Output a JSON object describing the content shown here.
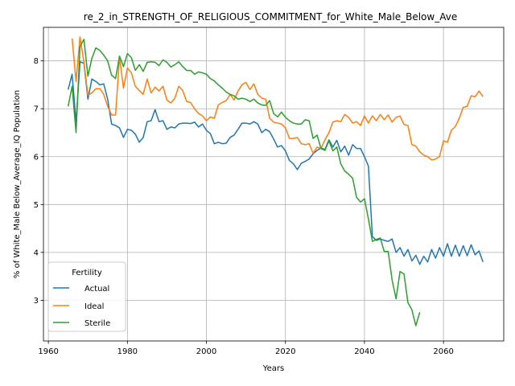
{
  "chart_data": {
    "type": "line",
    "title": "re_2_in_STRENGTH_OF_RELIGIOUS_COMMITMENT_for_White_Male_Below_Ave",
    "xlabel": "Years",
    "ylabel": "% of White_Male Below_Average_IQ Population",
    "xlim": [
      1958.75,
      2075.25
    ],
    "ylim": [
      2.15,
      8.7
    ],
    "xticks": [
      1960,
      1980,
      2000,
      2020,
      2040,
      2060
    ],
    "yticks": [
      3,
      4,
      5,
      6,
      7,
      8
    ],
    "grid": true,
    "legend": {
      "title": "Fertility",
      "position": "lower-left"
    },
    "series": [
      {
        "name": "Actual",
        "color": "#1f77b4",
        "x": [
          1965,
          1966,
          1967,
          1968,
          1969,
          1970,
          1971,
          1972,
          1973,
          1974,
          1975,
          1976,
          1977,
          1978,
          1979,
          1980,
          1981,
          1982,
          1983,
          1984,
          1985,
          1986,
          1987,
          1988,
          1989,
          1990,
          1991,
          1992,
          1993,
          1994,
          1995,
          1996,
          1997,
          1998,
          1999,
          2000,
          2001,
          2002,
          2003,
          2004,
          2005,
          2006,
          2007,
          2008,
          2009,
          2010,
          2011,
          2012,
          2013,
          2014,
          2015,
          2016,
          2017,
          2018,
          2019,
          2020,
          2021,
          2022,
          2023,
          2024,
          2025,
          2026,
          2027,
          2028,
          2029,
          2030,
          2031,
          2032,
          2033,
          2034,
          2035,
          2036,
          2037,
          2038,
          2039,
          2040,
          2041,
          2042,
          2043,
          2044,
          2045,
          2046,
          2047,
          2048,
          2049,
          2050,
          2051,
          2052,
          2053,
          2054,
          2055,
          2056,
          2057,
          2058,
          2059,
          2060,
          2061,
          2062,
          2063,
          2064,
          2065,
          2066,
          2067,
          2068,
          2069,
          2070
        ],
        "values": [
          7.4,
          7.72,
          6.72,
          7.98,
          7.95,
          7.2,
          7.62,
          7.57,
          7.5,
          7.52,
          7.2,
          6.68,
          6.65,
          6.6,
          6.4,
          6.57,
          6.55,
          6.47,
          6.3,
          6.4,
          6.73,
          6.75,
          6.98,
          6.73,
          6.75,
          6.57,
          6.62,
          6.6,
          6.68,
          6.7,
          6.7,
          6.69,
          6.72,
          6.62,
          6.68,
          6.55,
          6.48,
          6.27,
          6.3,
          6.27,
          6.28,
          6.4,
          6.45,
          6.57,
          6.7,
          6.7,
          6.68,
          6.73,
          6.68,
          6.5,
          6.57,
          6.52,
          6.37,
          6.2,
          6.23,
          6.12,
          5.92,
          5.85,
          5.73,
          5.86,
          5.9,
          5.95,
          6.06,
          6.13,
          6.18,
          6.15,
          6.35,
          6.2,
          6.34,
          6.1,
          6.22,
          6.03,
          6.25,
          6.17,
          6.17,
          6.0,
          5.8,
          4.33,
          4.25,
          4.28,
          4.25,
          4.23,
          4.28,
          4.0,
          4.1,
          3.92,
          4.06,
          3.82,
          3.94,
          3.75,
          3.92,
          3.8,
          4.06,
          3.88,
          4.1,
          3.92,
          4.18,
          3.92,
          4.15,
          3.92,
          4.14,
          3.93,
          4.16,
          3.95,
          4.03,
          3.8
        ]
      },
      {
        "name": "Ideal",
        "color": "#ff7f0e",
        "x": [
          1966,
          1967,
          1968,
          1969,
          1970,
          1971,
          1972,
          1973,
          1974,
          1975,
          1976,
          1977,
          1978,
          1979,
          1980,
          1981,
          1982,
          1983,
          1984,
          1985,
          1986,
          1987,
          1988,
          1989,
          1990,
          1991,
          1992,
          1993,
          1994,
          1995,
          1996,
          1997,
          1998,
          1999,
          2000,
          2001,
          2002,
          2003,
          2004,
          2005,
          2006,
          2007,
          2008,
          2009,
          2010,
          2011,
          2012,
          2013,
          2014,
          2015,
          2016,
          2017,
          2018,
          2019,
          2020,
          2021,
          2022,
          2023,
          2024,
          2025,
          2026,
          2027,
          2028,
          2029,
          2030,
          2031,
          2032,
          2033,
          2034,
          2035,
          2036,
          2037,
          2038,
          2039,
          2040,
          2041,
          2042,
          2043,
          2044,
          2045,
          2046,
          2047,
          2048,
          2049,
          2050,
          2051,
          2052,
          2053,
          2054,
          2055,
          2056,
          2057,
          2058,
          2059,
          2060,
          2061,
          2062,
          2063,
          2064,
          2065,
          2066,
          2067,
          2068,
          2069,
          2070
        ],
        "values": [
          8.47,
          7.57,
          8.5,
          7.97,
          7.28,
          7.33,
          7.42,
          7.42,
          7.3,
          7.05,
          6.87,
          6.87,
          8.08,
          7.43,
          7.85,
          7.75,
          7.47,
          7.38,
          7.3,
          7.62,
          7.33,
          7.45,
          7.37,
          7.47,
          7.18,
          7.12,
          7.22,
          7.47,
          7.38,
          7.15,
          7.13,
          7.0,
          6.9,
          6.85,
          6.75,
          6.83,
          6.8,
          7.08,
          7.13,
          7.17,
          7.3,
          7.18,
          7.37,
          7.5,
          7.55,
          7.4,
          7.52,
          7.3,
          7.22,
          7.2,
          6.8,
          6.72,
          6.7,
          6.68,
          6.6,
          6.38,
          6.38,
          6.4,
          6.27,
          6.25,
          6.27,
          6.07,
          6.2,
          6.17,
          6.35,
          6.5,
          6.72,
          6.75,
          6.73,
          6.88,
          6.82,
          6.7,
          6.73,
          6.65,
          6.85,
          6.7,
          6.85,
          6.75,
          6.88,
          6.77,
          6.87,
          6.72,
          6.82,
          6.85,
          6.67,
          6.65,
          6.25,
          6.22,
          6.1,
          6.03,
          6.0,
          5.93,
          5.95,
          6.0,
          6.33,
          6.3,
          6.55,
          6.63,
          6.8,
          7.03,
          7.05,
          7.27,
          7.25,
          7.37,
          7.25
        ]
      },
      {
        "name": "Sterile",
        "color": "#2ca02c",
        "x": [
          1965,
          1966,
          1967,
          1968,
          1969,
          1970,
          1971,
          1972,
          1973,
          1974,
          1975,
          1976,
          1977,
          1978,
          1979,
          1980,
          1981,
          1982,
          1983,
          1984,
          1985,
          1986,
          1987,
          1988,
          1989,
          1990,
          1991,
          1992,
          1993,
          1994,
          1995,
          1996,
          1997,
          1998,
          1999,
          2000,
          2001,
          2002,
          2003,
          2004,
          2005,
          2006,
          2007,
          2008,
          2009,
          2010,
          2011,
          2012,
          2013,
          2014,
          2015,
          2016,
          2017,
          2018,
          2019,
          2020,
          2021,
          2022,
          2023,
          2024,
          2025,
          2026,
          2027,
          2028,
          2029,
          2030,
          2031,
          2032,
          2033,
          2034,
          2035,
          2036,
          2037,
          2038,
          2039,
          2040,
          2041,
          2042,
          2043,
          2044,
          2045,
          2046,
          2047,
          2048,
          2049,
          2050,
          2051,
          2052,
          2053,
          2054
        ],
        "values": [
          7.05,
          7.47,
          6.5,
          8.3,
          8.45,
          7.68,
          8.05,
          8.27,
          8.22,
          8.12,
          8.0,
          7.7,
          7.63,
          8.1,
          7.88,
          8.15,
          8.07,
          7.8,
          7.92,
          7.78,
          7.97,
          7.98,
          7.97,
          7.9,
          8.02,
          7.97,
          7.87,
          7.92,
          7.98,
          7.88,
          7.8,
          7.8,
          7.72,
          7.77,
          7.75,
          7.72,
          7.63,
          7.58,
          7.5,
          7.43,
          7.35,
          7.3,
          7.27,
          7.2,
          7.22,
          7.2,
          7.15,
          7.2,
          7.12,
          7.08,
          7.07,
          7.17,
          6.9,
          6.83,
          6.93,
          6.82,
          6.75,
          6.7,
          6.68,
          6.68,
          6.77,
          6.75,
          6.38,
          6.45,
          6.17,
          6.13,
          6.33,
          6.12,
          6.2,
          5.85,
          5.7,
          5.63,
          5.55,
          5.15,
          5.05,
          5.12,
          4.7,
          4.23,
          4.27,
          4.3,
          4.02,
          4.02,
          3.42,
          3.03,
          3.6,
          3.55,
          2.95,
          2.8,
          2.47,
          2.75
        ]
      }
    ]
  }
}
